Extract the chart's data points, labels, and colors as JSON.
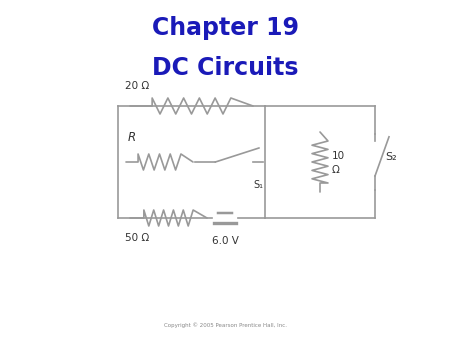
{
  "title1": "Chapter 19",
  "title2": "DC Circuits",
  "title_color": "#1a1ab8",
  "circuit_color": "#999999",
  "text_color": "#333333",
  "copyright": "Copyright © 2005 Pearson Prentice Hall, Inc.",
  "background_color": "#ffffff",
  "label_20": "20 Ω",
  "label_R": "R",
  "label_50": "50 Ω",
  "label_S1": "S₁",
  "label_10": "10",
  "label_omega": "Ω",
  "label_S2": "S₂",
  "label_V": "6.0 V"
}
